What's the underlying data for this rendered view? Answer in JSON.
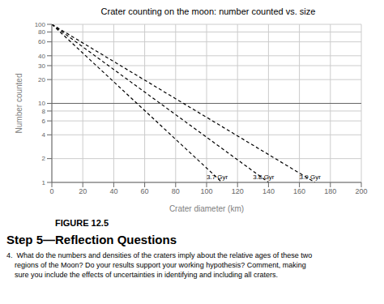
{
  "chart_data": {
    "type": "line",
    "title": "Crater counting on the moon: number counted vs. size",
    "x_label": "Crater diameter (km)",
    "y_label": "Number counted",
    "xlim": [
      0,
      200
    ],
    "ylim": [
      1,
      100
    ],
    "xticks": [
      0,
      20,
      40,
      60,
      80,
      100,
      120,
      140,
      160,
      180,
      200
    ],
    "yticks": [
      1,
      2,
      4,
      6,
      8,
      10,
      20,
      30,
      40,
      60,
      80,
      100
    ],
    "log": "y",
    "grid": true,
    "series": [
      {
        "x": [
          0,
          110
        ],
        "values": [
          100,
          1
        ],
        "color": "black",
        "line_style": "dashed"
      },
      {
        "x": [
          0,
          140
        ],
        "values": [
          100,
          1
        ],
        "color": "black",
        "line_style": "dashed"
      },
      {
        "x": [
          0,
          170
        ],
        "values": [
          100,
          1
        ],
        "color": "black",
        "line_style": "dashed"
      }
    ],
    "annotations": [
      {
        "text": "3.7 Gyr",
        "x": 100,
        "y": 1.05
      },
      {
        "text": "3.8 Gyr",
        "x": 130,
        "y": 1.05
      },
      {
        "text": "3.9 Gyr",
        "x": 160,
        "y": 1.05
      }
    ],
    "hlines": [
      10
    ],
    "caption": "FIGURE 12.5",
    "heading": "Step 5—Reflection Questions",
    "text": "4.  What do the numbers and densities of the craters imply about the relative ages of these two\n    regions of the Moon? Do your results support your working hypothesis? Comment, making\n    sure you include the effects of uncertainties in identifying and including all craters."
  }
}
